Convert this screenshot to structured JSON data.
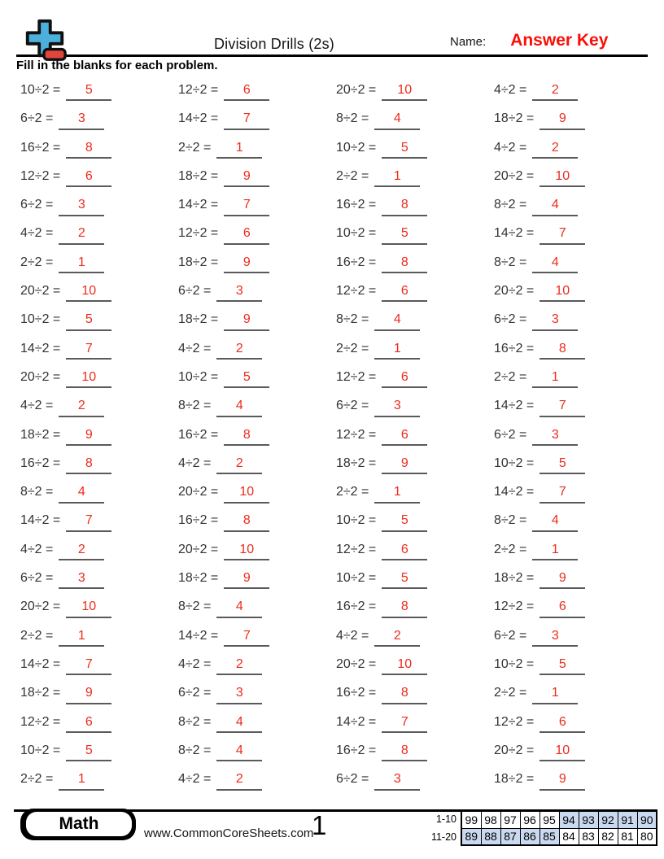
{
  "page": {
    "title": "Division Drills (2s)",
    "name_label": "Name:",
    "answer_key": "Answer Key",
    "instructions": "Fill in the blanks for each problem."
  },
  "colors": {
    "answer_red": "#ee2b1d",
    "answer_key_red": "#fb0f07",
    "table_shade_blue": "#c9d9f0",
    "underline_gray": "#5a5a5a",
    "text_dark": "#333333",
    "logo_plus_blue": "#4cb0dd",
    "logo_minus_red": "#e2453c"
  },
  "problems": {
    "divisor": 2,
    "operator": "÷",
    "equals": "=",
    "columns": [
      {
        "dividends": [
          10,
          6,
          16,
          12,
          6,
          4,
          2,
          20,
          10,
          14,
          20,
          4,
          18,
          16,
          8,
          14,
          4,
          6,
          20,
          2,
          14,
          18,
          12,
          10,
          2
        ],
        "answers": [
          5,
          3,
          8,
          6,
          3,
          2,
          1,
          10,
          5,
          7,
          10,
          2,
          9,
          8,
          4,
          7,
          2,
          3,
          10,
          1,
          7,
          9,
          6,
          5,
          1
        ]
      },
      {
        "dividends": [
          12,
          14,
          2,
          18,
          14,
          12,
          18,
          6,
          18,
          4,
          10,
          8,
          16,
          4,
          20,
          16,
          20,
          18,
          8,
          14,
          4,
          6,
          8,
          8,
          4
        ],
        "answers": [
          6,
          7,
          1,
          9,
          7,
          6,
          9,
          3,
          9,
          2,
          5,
          4,
          8,
          2,
          10,
          8,
          10,
          9,
          4,
          7,
          2,
          3,
          4,
          4,
          2
        ]
      },
      {
        "dividends": [
          20,
          8,
          10,
          2,
          16,
          10,
          16,
          12,
          8,
          2,
          12,
          6,
          12,
          18,
          2,
          10,
          12,
          10,
          16,
          4,
          20,
          16,
          14,
          16,
          6
        ],
        "answers": [
          10,
          4,
          5,
          1,
          8,
          5,
          8,
          6,
          4,
          1,
          6,
          3,
          6,
          9,
          1,
          5,
          6,
          5,
          8,
          2,
          10,
          8,
          7,
          8,
          3
        ]
      },
      {
        "dividends": [
          4,
          18,
          4,
          20,
          8,
          14,
          8,
          20,
          6,
          16,
          2,
          14,
          6,
          10,
          14,
          8,
          2,
          18,
          12,
          6,
          10,
          2,
          12,
          20,
          18
        ],
        "answers": [
          2,
          9,
          2,
          10,
          4,
          7,
          4,
          10,
          3,
          8,
          1,
          7,
          3,
          5,
          7,
          4,
          1,
          9,
          6,
          3,
          5,
          1,
          6,
          10,
          9
        ]
      }
    ]
  },
  "footer": {
    "subject": "Math",
    "website": "www.CommonCoreSheets.com",
    "page_number": "1",
    "grading": {
      "rows": [
        {
          "label": "1-10",
          "scores": [
            99,
            98,
            97,
            96,
            95,
            94,
            93,
            92,
            91,
            90
          ],
          "shaded": [
            false,
            false,
            false,
            false,
            false,
            true,
            true,
            true,
            true,
            true
          ]
        },
        {
          "label": "11-20",
          "scores": [
            89,
            88,
            87,
            86,
            85,
            84,
            83,
            82,
            81,
            80
          ],
          "shaded": [
            true,
            true,
            true,
            true,
            true,
            false,
            false,
            false,
            false,
            false
          ]
        }
      ]
    }
  }
}
